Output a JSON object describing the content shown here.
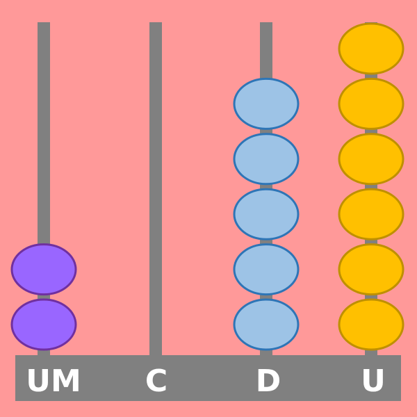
{
  "background_color": "#ff9999",
  "frame_color": "#808080",
  "rods": [
    {
      "label": "UM",
      "beads": 2,
      "bead_color": "#9966ff",
      "bead_stroke": "#7030a0"
    },
    {
      "label": "C",
      "beads": 0,
      "bead_color": "#9dc3e6",
      "bead_stroke": "#2e75b6"
    },
    {
      "label": "D",
      "beads": 5,
      "bead_color": "#9dc3e6",
      "bead_stroke": "#2e75b6"
    },
    {
      "label": "U",
      "beads": 6,
      "bead_color": "#ffc000",
      "bead_stroke": "#bf9000"
    }
  ]
}
